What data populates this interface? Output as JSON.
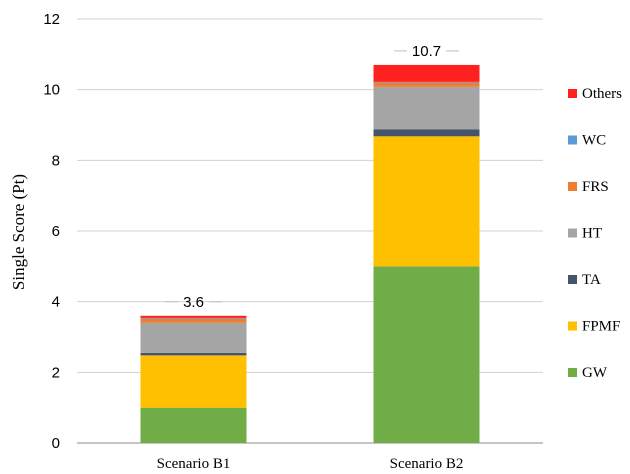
{
  "chart_data": {
    "type": "bar",
    "stacked": true,
    "title": "",
    "xlabel": "",
    "ylabel": "Single Score (Pt)",
    "ylim": [
      0,
      12
    ],
    "yticks": [
      0,
      2,
      4,
      6,
      8,
      10,
      12
    ],
    "grid": true,
    "legend_position": "right",
    "categories": [
      "Scenario B1",
      "Scenario B2"
    ],
    "totals": [
      "3.6",
      "10.7"
    ],
    "series": [
      {
        "name": "GW",
        "color": "#70AD47",
        "values": [
          1.0,
          5.0
        ]
      },
      {
        "name": "FPMF",
        "color": "#FFC000",
        "values": [
          1.48,
          3.68
        ]
      },
      {
        "name": "TA",
        "color": "#44546A",
        "values": [
          0.07,
          0.2
        ]
      },
      {
        "name": "HT",
        "color": "#A5A5A5",
        "values": [
          0.85,
          1.2
        ]
      },
      {
        "name": "FRS",
        "color": "#ED7D31",
        "values": [
          0.12,
          0.12
        ]
      },
      {
        "name": "WC",
        "color": "#5B9BD5",
        "values": [
          0.02,
          0.02
        ]
      },
      {
        "name": "Others",
        "color": "#FF2020",
        "values": [
          0.06,
          0.48
        ]
      }
    ]
  }
}
